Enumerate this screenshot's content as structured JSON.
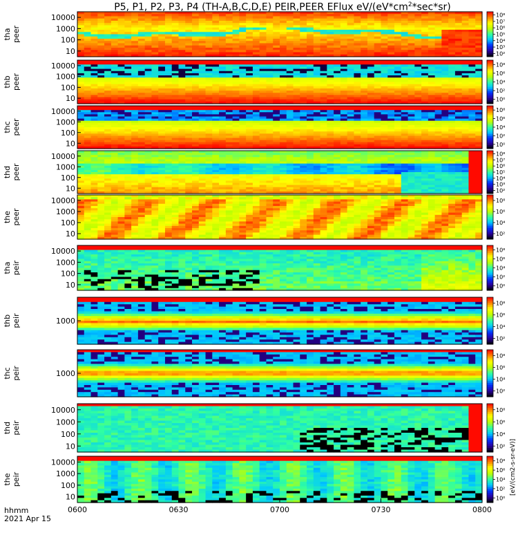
{
  "title": {
    "prefix": "P5, P1, P2, P3, P4 (TH-A,B,C,D,E) PEIR,PEER EFlux eV/(eV*cm",
    "sup": "2",
    "suffix": "*sec*sr)"
  },
  "footer": {
    "time_label": "hhmm",
    "date_label": "2021 Apr 15"
  },
  "colorbar_unit": "[eV/(cm2-s-sr-eV)]",
  "chart_data": {
    "type": "heatmap",
    "x_ticks": [
      "0600",
      "0630",
      "0700",
      "0730",
      "0800"
    ],
    "x_range": [
      "06:00",
      "08:00"
    ],
    "panels": [
      {
        "ylabel_1": "tha",
        "ylabel_2": "peer",
        "y_ticks": [
          "10000",
          "1000",
          "100",
          "10"
        ],
        "y_scale": "log",
        "cb_ticks": [
          "10⁸",
          "10⁷",
          "10⁶",
          "10⁵",
          "10⁴",
          "10³",
          "10²"
        ],
        "style": "peer-a"
      },
      {
        "ylabel_1": "thb",
        "ylabel_2": "peer",
        "y_ticks": [
          "10000",
          "1000",
          "100",
          "10"
        ],
        "y_scale": "log",
        "cb_ticks": [
          "10⁸",
          "10⁶",
          "10⁴",
          "10²",
          "10⁰"
        ],
        "style": "peer-b"
      },
      {
        "ylabel_1": "thc",
        "ylabel_2": "peer",
        "y_ticks": [
          "10000",
          "1000",
          "100",
          "10"
        ],
        "y_scale": "log",
        "cb_ticks": [
          "10⁸",
          "10⁶",
          "10⁴",
          "10²",
          "10⁰"
        ],
        "style": "peer-c"
      },
      {
        "ylabel_1": "thd",
        "ylabel_2": "peer",
        "y_ticks": [
          "10000",
          "1000",
          "100",
          "10"
        ],
        "y_scale": "log",
        "cb_ticks": [
          "10⁸",
          "10⁷",
          "10⁶",
          "10⁵",
          "10⁴",
          "10³",
          "10²"
        ],
        "style": "peer-d"
      },
      {
        "ylabel_1": "the",
        "ylabel_2": "peer",
        "y_ticks": [
          "10000",
          "1000",
          "100",
          "10"
        ],
        "y_scale": "log",
        "cb_ticks": [
          "10⁸",
          "10⁶",
          "10⁴",
          "10²"
        ],
        "style": "peer-e"
      },
      {
        "ylabel_1": "tha",
        "ylabel_2": "peir",
        "y_ticks": [
          "10000",
          "1000",
          "100",
          "10"
        ],
        "y_scale": "log",
        "cb_ticks": [
          "10⁸",
          "10⁶",
          "10⁴",
          "10²",
          "10⁰"
        ],
        "style": "peir-a"
      },
      {
        "ylabel_1": "thb",
        "ylabel_2": "peir",
        "y_ticks": [
          "1000"
        ],
        "y_scale": "log",
        "cb_ticks": [
          "10⁸",
          "10⁶",
          "10⁴",
          "10²"
        ],
        "style": "peir-b"
      },
      {
        "ylabel_1": "thc",
        "ylabel_2": "peir",
        "y_ticks": [
          "1000"
        ],
        "y_scale": "log",
        "cb_ticks": [
          "10⁸",
          "10⁶",
          "10⁴",
          "10²"
        ],
        "style": "peir-c"
      },
      {
        "ylabel_1": "thd",
        "ylabel_2": "peir",
        "y_ticks": [
          "10000",
          "1000",
          "100",
          "10"
        ],
        "y_scale": "log",
        "cb_ticks": [
          "10⁸",
          "10⁶",
          "10⁴",
          "10²"
        ],
        "style": "peir-d"
      },
      {
        "ylabel_1": "the",
        "ylabel_2": "peir",
        "y_ticks": [
          "10000",
          "1000",
          "100",
          "10"
        ],
        "y_scale": "log",
        "cb_ticks": [
          "10⁸",
          "10⁶",
          "10⁴",
          "10²",
          "10⁰"
        ],
        "style": "peir-e"
      }
    ],
    "colormap": [
      "#000000",
      "#2a00a0",
      "#0030ff",
      "#00c8ff",
      "#30ffa0",
      "#c0ff00",
      "#ffff00",
      "#ff8000",
      "#ff0000"
    ]
  }
}
